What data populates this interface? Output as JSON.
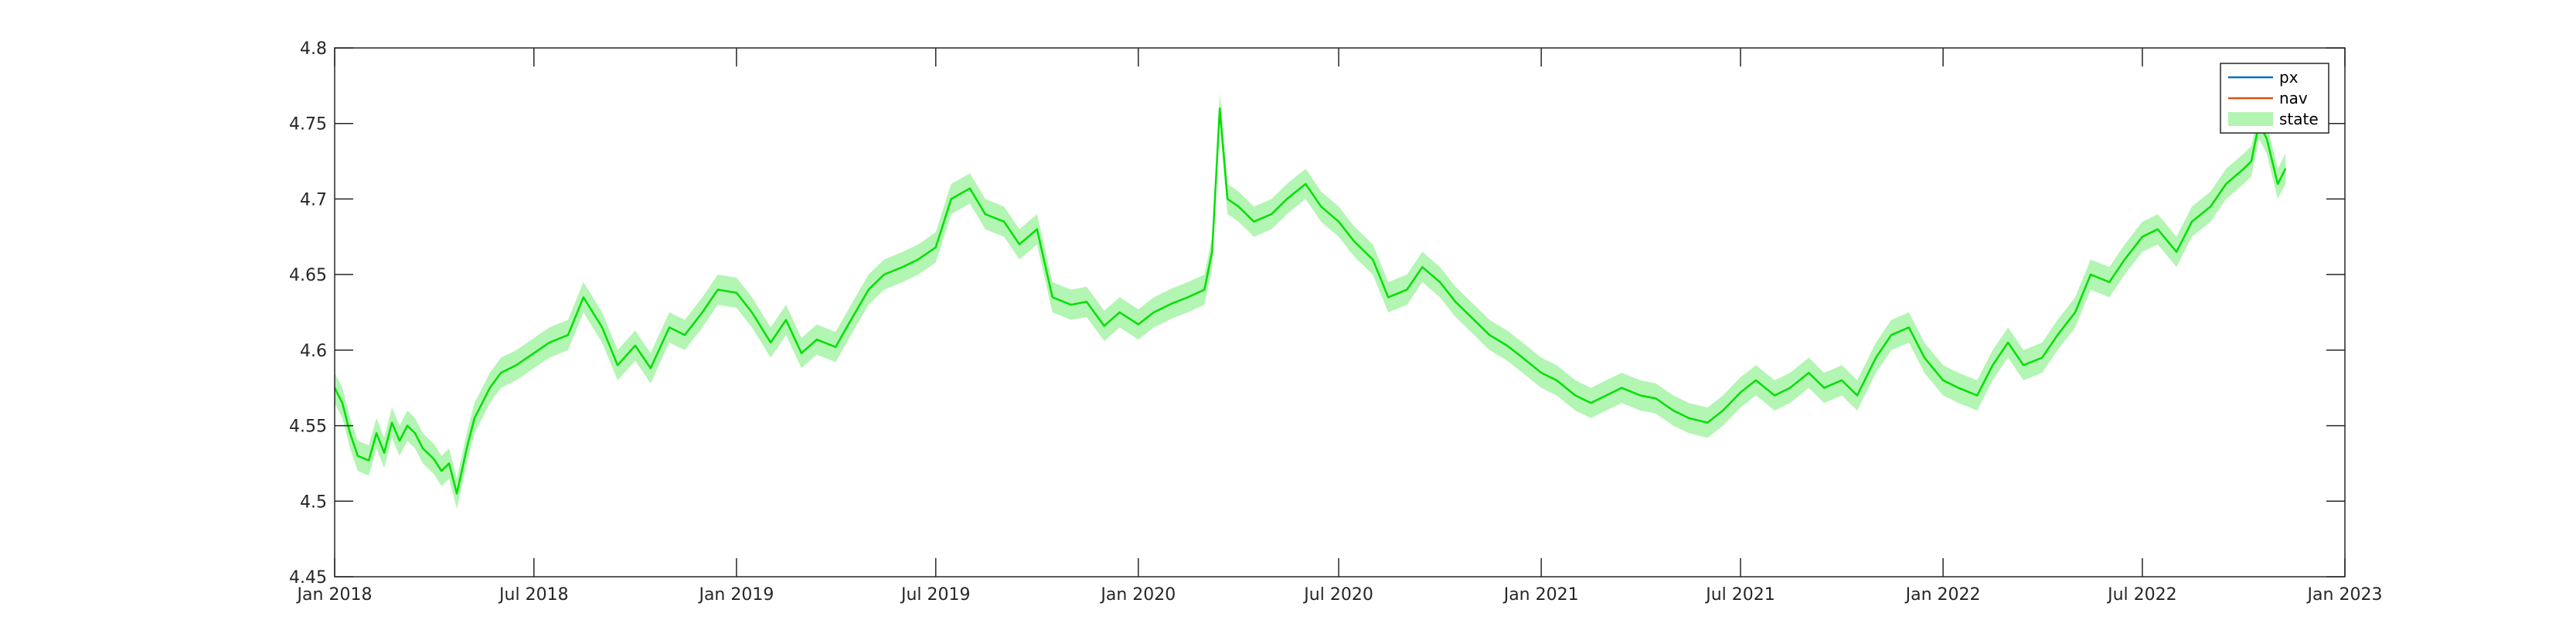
{
  "chart_data": {
    "type": "line",
    "title": "",
    "xlabel": "",
    "ylabel": "",
    "xlim": [
      "2018-01-01",
      "2023-01-01"
    ],
    "ylim": [
      4.45,
      4.8
    ],
    "x_ticks": [
      "2018-01-01",
      "2018-07-01",
      "2019-01-01",
      "2019-07-01",
      "2020-01-01",
      "2020-07-01",
      "2021-01-01",
      "2021-07-01",
      "2022-01-01",
      "2022-07-01",
      "2023-01-01"
    ],
    "x_tick_labels": [
      "Jan 2018",
      "Jul 2018",
      "Jan 2019",
      "Jul 2019",
      "Jan 2020",
      "Jul 2020",
      "Jan 2021",
      "Jul 2021",
      "Jan 2022",
      "Jul 2022",
      "Jan 2023"
    ],
    "y_ticks": [
      4.45,
      4.5,
      4.55,
      4.6,
      4.65,
      4.7,
      4.75,
      4.8
    ],
    "y_tick_labels": [
      "4.45",
      "4.5",
      "4.55",
      "4.6",
      "4.65",
      "4.7",
      "4.75",
      "4.8"
    ],
    "grid": false,
    "legend_position": "top-right",
    "legend": [
      {
        "label": "px",
        "color": "#0072BD",
        "kind": "line"
      },
      {
        "label": "nav",
        "color": "#D95319",
        "kind": "line"
      },
      {
        "label": "state",
        "color": "#B3F5B3",
        "kind": "patch"
      }
    ],
    "series": [
      {
        "name": "px",
        "color": "#00E000",
        "band_halfwidth": 0.01,
        "x": [
          "2018-01-01",
          "2018-01-08",
          "2018-01-15",
          "2018-01-22",
          "2018-02-01",
          "2018-02-08",
          "2018-02-15",
          "2018-02-22",
          "2018-03-01",
          "2018-03-08",
          "2018-03-15",
          "2018-03-22",
          "2018-04-01",
          "2018-04-08",
          "2018-04-15",
          "2018-04-22",
          "2018-05-01",
          "2018-05-08",
          "2018-05-15",
          "2018-05-22",
          "2018-06-01",
          "2018-06-15",
          "2018-07-01",
          "2018-07-15",
          "2018-08-01",
          "2018-08-15",
          "2018-09-01",
          "2018-09-15",
          "2018-10-01",
          "2018-10-15",
          "2018-11-01",
          "2018-11-15",
          "2018-12-01",
          "2018-12-15",
          "2019-01-01",
          "2019-01-15",
          "2019-02-01",
          "2019-02-15",
          "2019-03-01",
          "2019-03-15",
          "2019-04-01",
          "2019-04-15",
          "2019-05-01",
          "2019-05-15",
          "2019-06-01",
          "2019-06-15",
          "2019-07-01",
          "2019-07-15",
          "2019-08-01",
          "2019-08-15",
          "2019-09-01",
          "2019-09-15",
          "2019-10-01",
          "2019-10-15",
          "2019-11-01",
          "2019-11-15",
          "2019-12-01",
          "2019-12-15",
          "2020-01-01",
          "2020-01-15",
          "2020-02-01",
          "2020-02-15",
          "2020-03-01",
          "2020-03-08",
          "2020-03-15",
          "2020-03-22",
          "2020-04-01",
          "2020-04-15",
          "2020-05-01",
          "2020-05-15",
          "2020-06-01",
          "2020-06-15",
          "2020-07-01",
          "2020-07-15",
          "2020-08-01",
          "2020-08-15",
          "2020-09-01",
          "2020-09-15",
          "2020-10-01",
          "2020-10-15",
          "2020-11-01",
          "2020-11-15",
          "2020-12-01",
          "2020-12-15",
          "2021-01-01",
          "2021-01-15",
          "2021-02-01",
          "2021-02-15",
          "2021-03-01",
          "2021-03-15",
          "2021-04-01",
          "2021-04-15",
          "2021-05-01",
          "2021-05-15",
          "2021-06-01",
          "2021-06-15",
          "2021-07-01",
          "2021-07-15",
          "2021-08-01",
          "2021-08-15",
          "2021-09-01",
          "2021-09-15",
          "2021-10-01",
          "2021-10-15",
          "2021-11-01",
          "2021-11-15",
          "2021-12-01",
          "2021-12-15",
          "2022-01-01",
          "2022-01-15",
          "2022-02-01",
          "2022-02-15",
          "2022-03-01",
          "2022-03-15",
          "2022-04-01",
          "2022-04-15",
          "2022-05-01",
          "2022-05-15",
          "2022-06-01",
          "2022-06-15",
          "2022-07-01",
          "2022-07-15",
          "2022-08-01",
          "2022-08-15",
          "2022-09-01",
          "2022-09-15",
          "2022-10-01",
          "2022-10-08",
          "2022-10-15",
          "2022-10-22",
          "2022-11-01",
          "2022-11-08"
        ],
        "y": [
          4.575,
          4.565,
          4.545,
          4.53,
          4.527,
          4.545,
          4.532,
          4.552,
          4.54,
          4.55,
          4.545,
          4.535,
          4.528,
          4.52,
          4.525,
          4.505,
          4.535,
          4.555,
          4.565,
          4.575,
          4.585,
          4.59,
          4.598,
          4.605,
          4.61,
          4.635,
          4.615,
          4.59,
          4.603,
          4.588,
          4.615,
          4.61,
          4.625,
          4.64,
          4.638,
          4.625,
          4.605,
          4.62,
          4.598,
          4.607,
          4.602,
          4.62,
          4.64,
          4.65,
          4.655,
          4.66,
          4.668,
          4.7,
          4.707,
          4.69,
          4.685,
          4.67,
          4.68,
          4.635,
          4.63,
          4.632,
          4.616,
          4.625,
          4.617,
          4.625,
          4.631,
          4.635,
          4.64,
          4.665,
          4.76,
          4.7,
          4.695,
          4.685,
          4.69,
          4.7,
          4.71,
          4.695,
          4.685,
          4.672,
          4.66,
          4.635,
          4.64,
          4.655,
          4.645,
          4.632,
          4.62,
          4.61,
          4.603,
          4.595,
          4.585,
          4.58,
          4.57,
          4.565,
          4.57,
          4.575,
          4.57,
          4.568,
          4.56,
          4.555,
          4.552,
          4.56,
          4.572,
          4.58,
          4.57,
          4.575,
          4.585,
          4.575,
          4.58,
          4.57,
          4.595,
          4.61,
          4.615,
          4.595,
          4.58,
          4.575,
          4.57,
          4.59,
          4.605,
          4.59,
          4.595,
          4.61,
          4.625,
          4.65,
          4.645,
          4.66,
          4.675,
          4.68,
          4.665,
          4.685,
          4.695,
          4.71,
          4.72,
          4.725,
          4.75,
          4.74,
          4.71,
          4.72
        ]
      }
    ]
  }
}
